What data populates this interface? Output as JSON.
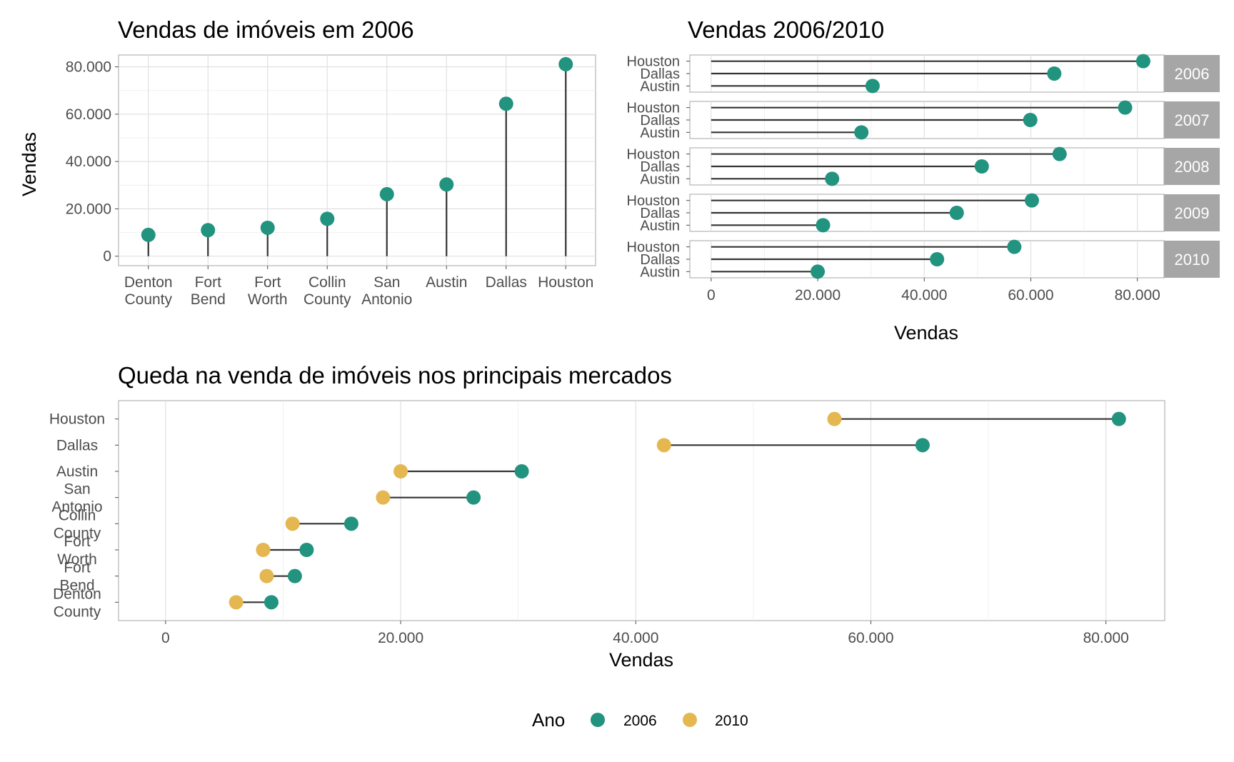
{
  "colors": {
    "y2006": "#21937F",
    "y2010": "#E5B750",
    "stem": "#333333",
    "strip": "#A6A6A6"
  },
  "chart_data": [
    {
      "type": "lollipop",
      "title": "Vendas de imóveis em 2006",
      "ylabel": "Vendas",
      "categories": [
        "Denton County",
        "Fort Bend",
        "Fort Worth",
        "Collin County",
        "San Antonio",
        "Austin",
        "Dallas",
        "Houston"
      ],
      "values": [
        9000,
        11000,
        12000,
        15800,
        26200,
        30300,
        64400,
        81100
      ],
      "yticks": [
        "0",
        "20.000",
        "40.000",
        "60.000",
        "80.000"
      ],
      "ylim": [
        -4000,
        85000
      ]
    },
    {
      "type": "lollipop-faceted",
      "title": "Vendas 2006/2010",
      "xlabel": "Vendas",
      "categories": [
        "Houston",
        "Dallas",
        "Austin"
      ],
      "facets": [
        {
          "year": "2006",
          "values": [
            81100,
            64400,
            30300
          ]
        },
        {
          "year": "2007",
          "values": [
            77700,
            59900,
            28200
          ]
        },
        {
          "year": "2008",
          "values": [
            65400,
            50800,
            22700
          ]
        },
        {
          "year": "2009",
          "values": [
            60200,
            46100,
            21000
          ]
        },
        {
          "year": "2010",
          "values": [
            56900,
            42400,
            20000
          ]
        }
      ],
      "xticks": [
        "0",
        "20.000",
        "40.000",
        "60.000",
        "80.000"
      ],
      "xlim": [
        -4000,
        85000
      ]
    },
    {
      "type": "dumbbell",
      "title": "Queda na venda de imóveis nos principais mercados",
      "xlabel": "Vendas",
      "categories": [
        "Houston",
        "Dallas",
        "Austin",
        "San Antonio",
        "Collin County",
        "Fort Worth",
        "Fort Bend",
        "Denton County"
      ],
      "series": [
        {
          "name": "2006",
          "values": [
            81100,
            64400,
            30300,
            26200,
            15800,
            12000,
            11000,
            9000
          ]
        },
        {
          "name": "2010",
          "values": [
            56900,
            42400,
            20000,
            18500,
            10800,
            8300,
            8600,
            6000
          ]
        }
      ],
      "xticks": [
        "0",
        "20.000",
        "40.000",
        "60.000",
        "80.000"
      ],
      "xlim": [
        -4000,
        85000
      ],
      "legend": {
        "title": "Ano",
        "items": [
          "2006",
          "2010"
        ],
        "placement": "bottom"
      }
    }
  ]
}
